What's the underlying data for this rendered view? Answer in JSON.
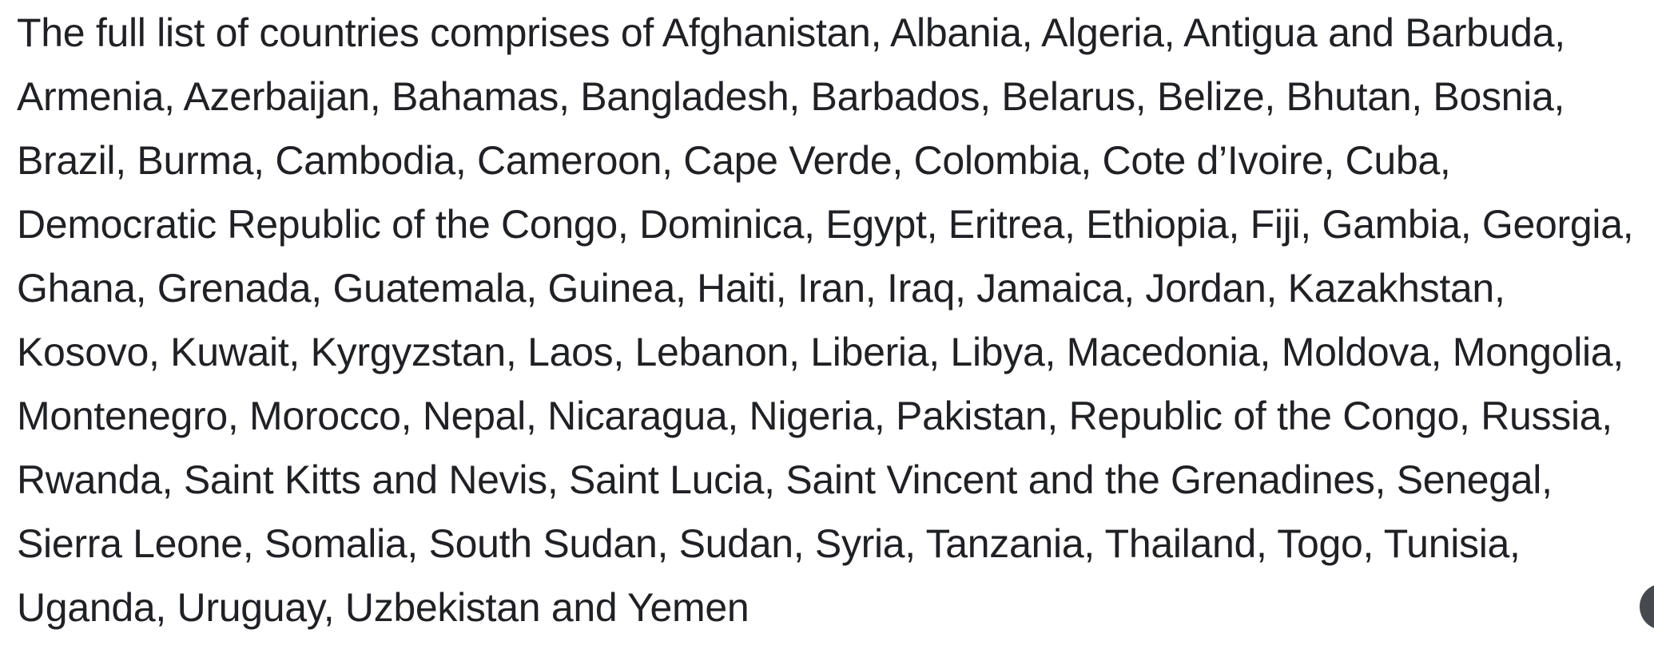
{
  "document": {
    "full_text": "The full list of countries comprises of Afghanistan, Albania, Algeria, Antigua and Barbuda, Armenia, Azerbaijan, Bahamas, Bangladesh, Barbados, Belarus, Belize, Bhutan, Bosnia, Brazil, Burma, Cambodia, Cameroon, Cape Verde, Colombia, Cote d’Ivoire, Cuba, Democratic Republic of the Congo, Dominica, Egypt, Eritrea, Ethiopia, Fiji, Gambia, Georgia, Ghana, Grenada, Guatemala, Guinea, Haiti, Iran, Iraq, Jamaica, Jordan, Kazakhstan, Kosovo, Kuwait, Kyrgyzstan, Laos, Lebanon, Liberia, Libya, Macedonia, Moldova, Mongolia, Montenegro, Morocco, Nepal, Nicaragua, Nigeria, Pakistan, Republic of the Congo, Russia, Rwanda, Saint Kitts and Nevis, Saint Lucia, Saint Vincent and the Grenadines, Senegal, Sierra Leone, Somalia, South Sudan, Sudan, Syria, Tanzania, Thailand, Togo, Tunisia, Uganda, Uruguay, Uzbekistan and Yemen",
    "lines": [
      "The full list of countries comprises of Afghanistan, Albania, Algeria, Antigua and Barbuda,",
      "Armenia, Azerbaijan, Bahamas, Bangladesh, Barbados, Belarus, Belize, Bhutan, Bosnia,",
      "Brazil, Burma, Cambodia, Cameroon, Cape Verde, Colombia, Cote d’Ivoire, Cuba,",
      "Democratic Republic of the Congo, Dominica, Egypt, Eritrea, Ethiopia, Fiji, Gambia, Georgia,",
      "Ghana, Grenada, Guatemala, Guinea, Haiti, Iran, Iraq, Jamaica, Jordan, Kazakhstan,",
      "Kosovo, Kuwait, Kyrgyzstan, Laos, Lebanon, Liberia, Libya, Macedonia, Moldova, Mongolia,",
      "Montenegro, Morocco, Nepal, Nicaragua, Nigeria, Pakistan, Republic of the Congo, Russia,",
      "Rwanda, Saint Kitts and Nevis, Saint Lucia, Saint Vincent and the Grenadines, Senegal,",
      "Sierra Leone, Somalia, South Sudan, Sudan, Syria, Tanzania, Thailand, Togo, Tunisia,",
      "Uganda, Uruguay, Uzbekistan and Yemen"
    ],
    "countries": [
      "Afghanistan",
      "Albania",
      "Algeria",
      "Antigua and Barbuda",
      "Armenia",
      "Azerbaijan",
      "Bahamas",
      "Bangladesh",
      "Barbados",
      "Belarus",
      "Belize",
      "Bhutan",
      "Bosnia",
      "Brazil",
      "Burma",
      "Cambodia",
      "Cameroon",
      "Cape Verde",
      "Colombia",
      "Cote d’Ivoire",
      "Cuba",
      "Democratic Republic of the Congo",
      "Dominica",
      "Egypt",
      "Eritrea",
      "Ethiopia",
      "Fiji",
      "Gambia",
      "Georgia",
      "Ghana",
      "Grenada",
      "Guatemala",
      "Guinea",
      "Haiti",
      "Iran",
      "Iraq",
      "Jamaica",
      "Jordan",
      "Kazakhstan",
      "Kosovo",
      "Kuwait",
      "Kyrgyzstan",
      "Laos",
      "Lebanon",
      "Liberia",
      "Libya",
      "Macedonia",
      "Moldova",
      "Mongolia",
      "Montenegro",
      "Morocco",
      "Nepal",
      "Nicaragua",
      "Nigeria",
      "Pakistan",
      "Republic of the Congo",
      "Russia",
      "Rwanda",
      "Saint Kitts and Nevis",
      "Saint Lucia",
      "Saint Vincent and the Grenadines",
      "Senegal",
      "Sierra Leone",
      "Somalia",
      "South Sudan",
      "Sudan",
      "Syria",
      "Tanzania",
      "Thailand",
      "Togo",
      "Tunisia",
      "Uganda",
      "Uruguay",
      "Uzbekistan",
      "Yemen"
    ]
  },
  "colors": {
    "text": "#202124",
    "background": "#ffffff",
    "fab": "#46494d"
  }
}
